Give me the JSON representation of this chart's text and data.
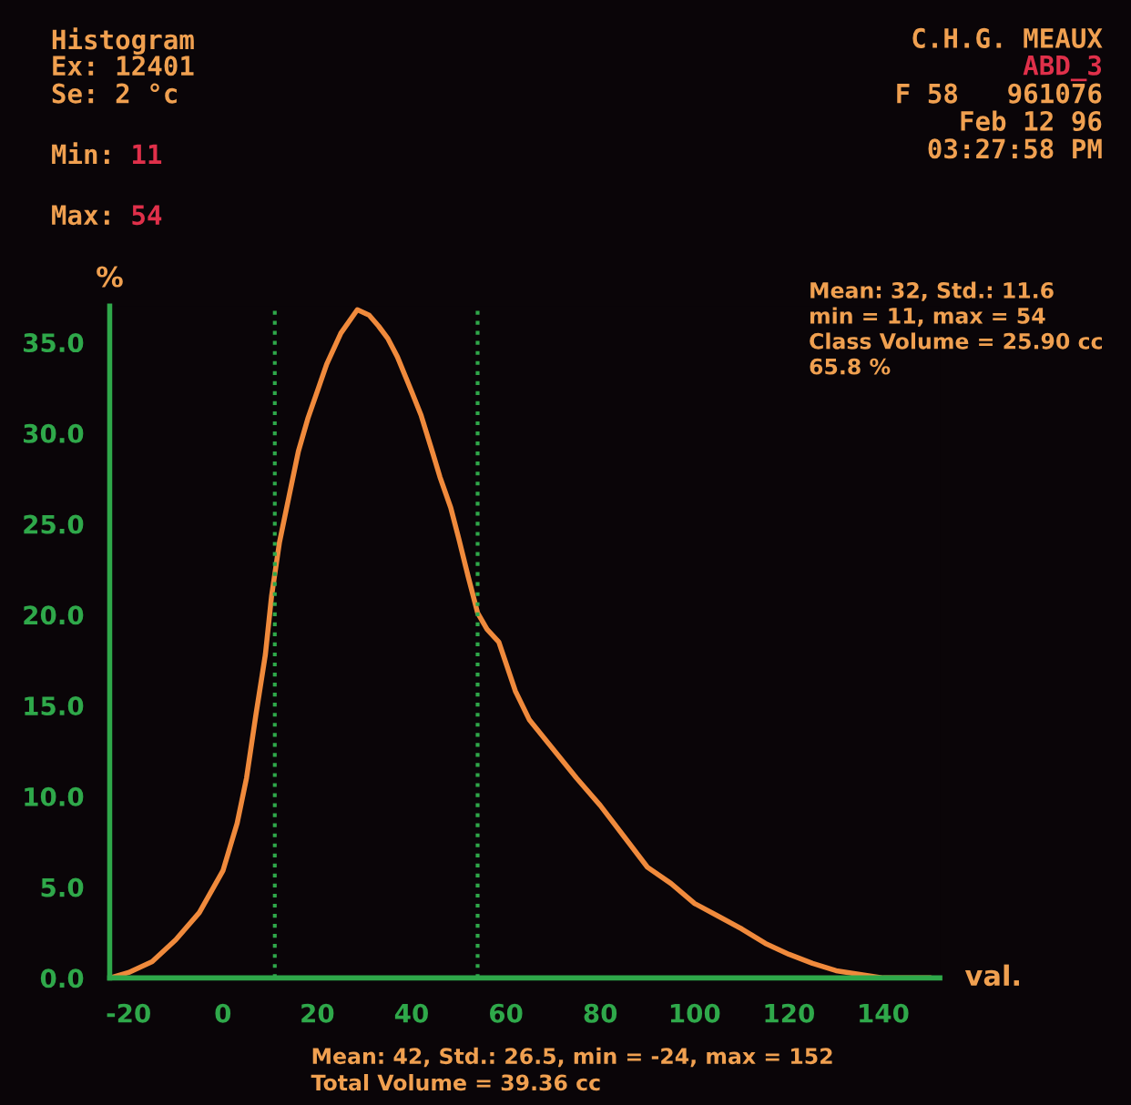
{
  "chart_data": {
    "type": "line",
    "title": "Histogram",
    "xlabel": "val.",
    "ylabel": "%",
    "x": [
      -24,
      -20,
      -15,
      -10,
      -5,
      0,
      3,
      5,
      7,
      9,
      10.3,
      12,
      14,
      16,
      18,
      20,
      22,
      25,
      28.5,
      31,
      33,
      35,
      37,
      40,
      42,
      44.5,
      46,
      48.3,
      50,
      52,
      54,
      56,
      58.5,
      62,
      65,
      70,
      75,
      80,
      85,
      90,
      95,
      100,
      105,
      110,
      115,
      120,
      125,
      130,
      135,
      140,
      145,
      150
    ],
    "series": [
      {
        "color": "#f08a3c",
        "values": [
          0,
          0.3,
          0.9,
          2.1,
          3.6,
          5.9,
          8.5,
          11,
          14.5,
          17.8,
          21,
          24,
          26.5,
          29,
          30.8,
          32.3,
          33.8,
          35.5,
          36.8,
          36.5,
          35.9,
          35.2,
          34.2,
          32.3,
          31,
          28.9,
          27.6,
          25.9,
          24.2,
          22.1,
          20.1,
          19.2,
          18.5,
          15.8,
          14.2,
          12.6,
          11,
          9.5,
          7.8,
          6.1,
          5.2,
          4.1,
          3.4,
          2.7,
          1.9,
          1.3,
          0.8,
          0.4,
          0.2,
          0,
          0,
          0
        ]
      }
    ],
    "xlim": [
      -24,
      152
    ],
    "ylim": [
      0,
      37
    ],
    "xticks": [
      -20,
      0,
      20,
      40,
      60,
      80,
      100,
      120,
      140
    ],
    "yticks": [
      {
        "value": 0,
        "label": "0.0"
      },
      {
        "value": 5,
        "label": "5.0"
      },
      {
        "value": 10,
        "label": "10.0"
      },
      {
        "value": 15,
        "label": "15.0"
      },
      {
        "value": 20,
        "label": "20.0"
      },
      {
        "value": 25,
        "label": "25.0"
      },
      {
        "value": 30,
        "label": "30.0"
      },
      {
        "value": 35,
        "label": "35.0"
      }
    ],
    "ref_lines": [
      {
        "axis": "x",
        "value": 11,
        "color": "#2fa84a",
        "line_style": "dotted"
      },
      {
        "axis": "x",
        "value": 54,
        "color": "#2fa84a",
        "line_style": "dotted"
      }
    ],
    "grid": false,
    "legend": false,
    "marker": "none",
    "line_style": "solid",
    "annotations": [
      "Ex: 12401",
      "Se: 2 °c",
      "Min: 11",
      "Max: 54",
      "C.H.G. MEAUX",
      "ABD_3",
      "F 58   961076",
      "Feb 12 96",
      "03:27:58 PM",
      "Mean: 32, Std.: 11.6",
      "min = 11, max = 54",
      "Class Volume = 25.90 cc",
      "65.8 %",
      "Mean: 42, Std.: 26.5, min = -24, max = 152",
      "Total Volume = 39.36 cc"
    ]
  }
}
